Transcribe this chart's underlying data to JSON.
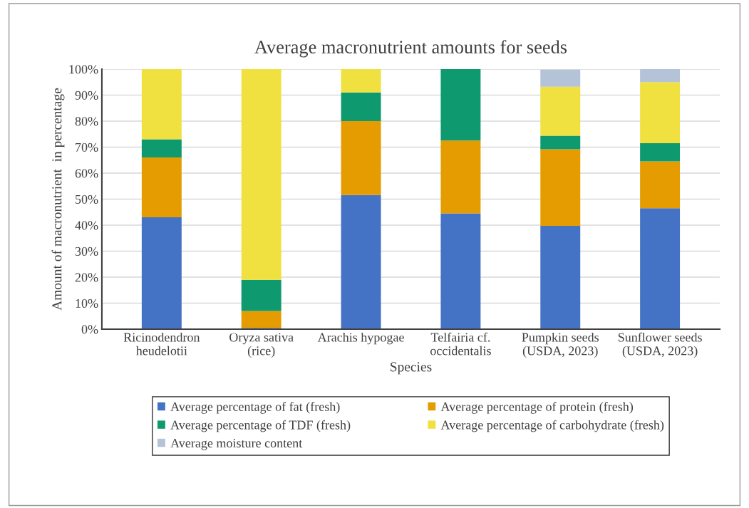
{
  "chart_data": {
    "type": "bar",
    "stacked": true,
    "title": "Average macronutrient amounts for seeds",
    "xlabel": "Species",
    "ylabel": "Amount of macronutrient  in percentage",
    "categories": [
      "Ricinodendron\nheudelotii",
      "Oryza sativa\n(rice)",
      "Arachis hypogae",
      "Telfairia cf.\noccidentalis",
      "Pumpkin seeds\n(USDA, 2023)",
      "Sunflower seeds\n(USDA, 2023)"
    ],
    "series": [
      {
        "name": "Average percentage of fat (fresh)",
        "color": "#4472c4",
        "values": [
          43,
          0.5,
          51.6,
          44.5,
          39.7,
          46.5
        ]
      },
      {
        "name": "Average percentage of protein (fresh)",
        "color": "#e59c00",
        "values": [
          23,
          6.5,
          28.4,
          28,
          29.5,
          18
        ]
      },
      {
        "name": "Average percentage of TDF (fresh)",
        "color": "#0e9a6e",
        "values": [
          7,
          12,
          11,
          27.5,
          5.2,
          7
        ]
      },
      {
        "name": "Average percentage of carbohydrate (fresh)",
        "color": "#f0e040",
        "values": [
          27,
          81,
          9,
          null,
          18.8,
          23.5
        ]
      },
      {
        "name": "Average moisture content",
        "color": "#b4c3d8",
        "values": [
          null,
          null,
          null,
          null,
          6.6,
          5
        ]
      }
    ],
    "ylim": [
      0,
      100
    ],
    "yticks": [
      {
        "value": 0,
        "label": "0%"
      },
      {
        "value": 10,
        "label": "10%"
      },
      {
        "value": 20,
        "label": "20%"
      },
      {
        "value": 30,
        "label": "30%"
      },
      {
        "value": 40,
        "label": "40%"
      },
      {
        "value": 50,
        "label": "50%"
      },
      {
        "value": 60,
        "label": "60%"
      },
      {
        "value": 70,
        "label": "70%"
      },
      {
        "value": 80,
        "label": "80%"
      },
      {
        "value": 90,
        "label": "90%"
      },
      {
        "value": 100,
        "label": "100%"
      }
    ],
    "grid": "y",
    "legend": "bottom"
  }
}
